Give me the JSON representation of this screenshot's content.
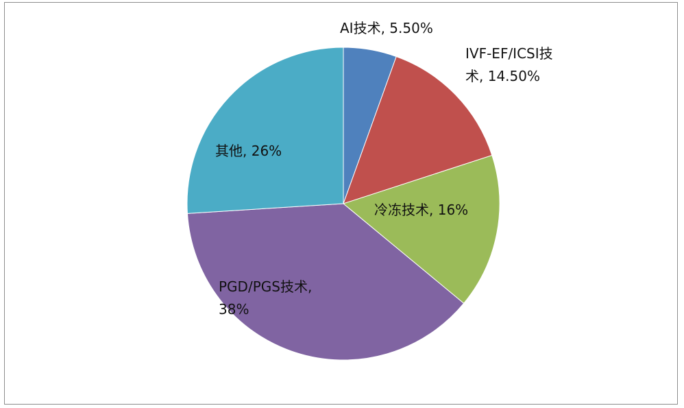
{
  "chart_data": {
    "type": "pie",
    "start_angle_deg": 0,
    "direction": "clockwise",
    "slices": [
      {
        "label_lines": [
          "AI技术, 5.50%"
        ],
        "category": "AI技术",
        "value": 5.5,
        "color": "#4F81BD"
      },
      {
        "label_lines": [
          "IVF-EF/ICSI技",
          "术, 14.50%"
        ],
        "category": "IVF-EF/ICSI技术",
        "value": 14.5,
        "color": "#C0504D"
      },
      {
        "label_lines": [
          "冷冻技术, 16%"
        ],
        "category": "冷冻技术",
        "value": 16,
        "color": "#9BBB59"
      },
      {
        "label_lines": [
          "PGD/PGS技术,",
          "38%"
        ],
        "category": "PGD/PGS技术",
        "value": 38,
        "color": "#8064A2"
      },
      {
        "label_lines": [
          "其他, 26%"
        ],
        "category": "其他",
        "value": 26,
        "color": "#4BACC6"
      }
    ],
    "legend": "none",
    "data_labels": "category-and-percent"
  }
}
